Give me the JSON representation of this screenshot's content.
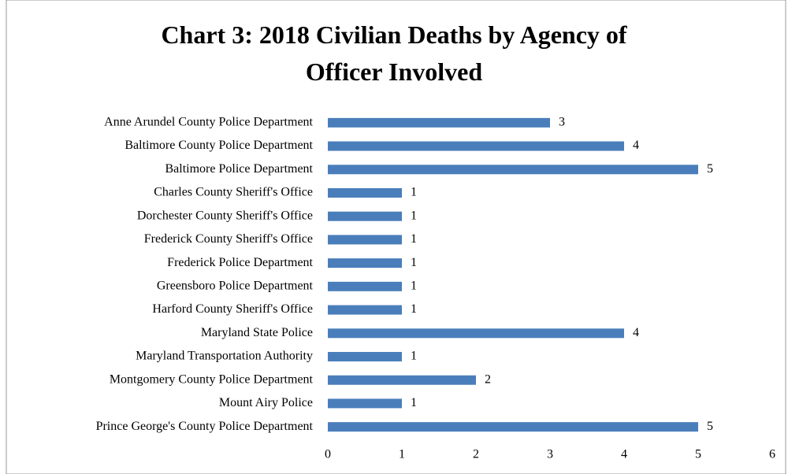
{
  "chart_data": {
    "type": "bar",
    "orientation": "horizontal",
    "title": "Chart 3: 2018 Civilian Deaths by Agency of Officer Involved",
    "categories": [
      "Anne Arundel County Police Department",
      "Baltimore County Police Department",
      "Baltimore Police Department",
      "Charles County Sheriff's Office",
      "Dorchester County Sheriff's Office",
      "Frederick County Sheriff's Office",
      "Frederick Police Department",
      "Greensboro Police Department",
      "Harford County Sheriff's Office",
      "Maryland State Police",
      "Maryland Transportation Authority",
      "Montgomery County Police Department",
      "Mount Airy Police",
      "Prince George's County Police Department"
    ],
    "values": [
      3,
      4,
      5,
      1,
      1,
      1,
      1,
      1,
      1,
      4,
      1,
      2,
      1,
      5
    ],
    "color": "#4a7ebb",
    "xlim": [
      0,
      6
    ],
    "xticks": [
      0,
      1,
      2,
      3,
      4,
      5,
      6
    ],
    "grid": false
  }
}
